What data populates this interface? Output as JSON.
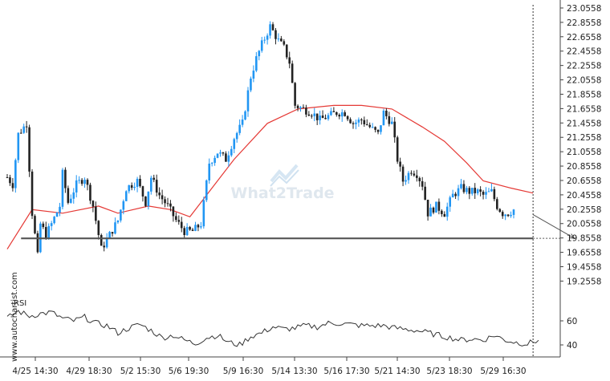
{
  "chart_data": {
    "type": "candlestick",
    "price_axis": {
      "range": [
        19.16,
        23.1
      ],
      "ticks": [
        "23.0558",
        "22.8558",
        "22.6558",
        "22.4558",
        "22.2558",
        "22.0558",
        "21.8558",
        "21.6558",
        "21.4558",
        "21.2558",
        "21.0558",
        "20.8558",
        "20.6558",
        "20.4558",
        "20.2558",
        "20.0558",
        "19.8558",
        "19.6558",
        "19.4558",
        "19.2558"
      ]
    },
    "time_axis": {
      "ticks": [
        "4/25 14:30",
        "4/29 18:30",
        "5/2 15:30",
        "5/6 19:30",
        "5/9 16:30",
        "5/14 13:30",
        "5/16 17:30",
        "5/21 14:30",
        "5/23 18:30",
        "5/29 16:30"
      ]
    },
    "watermark": "What2Trade",
    "credit": "www.autochartist.com",
    "rsi_label": "RSI",
    "rsi_axis": {
      "range": [
        30,
        80
      ],
      "ticks": [
        "60",
        "40"
      ]
    },
    "support_level": 19.85,
    "projection": {
      "from": [
        190,
        20.18
      ],
      "to": [
        205,
        19.85
      ]
    },
    "current_marker_index": 190,
    "ma_anchors": [
      [
        0,
        19.7
      ],
      [
        9,
        20.25
      ],
      [
        20,
        20.2
      ],
      [
        33,
        20.3
      ],
      [
        40,
        20.2
      ],
      [
        51,
        20.3
      ],
      [
        59,
        20.25
      ],
      [
        66,
        20.15
      ],
      [
        73,
        20.5
      ],
      [
        82,
        20.95
      ],
      [
        94,
        21.45
      ],
      [
        105,
        21.65
      ],
      [
        118,
        21.7
      ],
      [
        128,
        21.7
      ],
      [
        139,
        21.65
      ],
      [
        150,
        21.4
      ],
      [
        158,
        21.2
      ],
      [
        166,
        20.9
      ],
      [
        172,
        20.65
      ],
      [
        182,
        20.55
      ],
      [
        190,
        20.48
      ]
    ],
    "price_anchors": [
      [
        0,
        20.7
      ],
      [
        2,
        20.6
      ],
      [
        4,
        21.3
      ],
      [
        7,
        21.45
      ],
      [
        9,
        20.2
      ],
      [
        11,
        19.6
      ],
      [
        12,
        20.05
      ],
      [
        14,
        19.9
      ],
      [
        16,
        20.05
      ],
      [
        19,
        20.3
      ],
      [
        20,
        20.75
      ],
      [
        22,
        20.35
      ],
      [
        25,
        20.6
      ],
      [
        28,
        20.7
      ],
      [
        31,
        20.3
      ],
      [
        34,
        19.7
      ],
      [
        37,
        19.9
      ],
      [
        40,
        20.1
      ],
      [
        43,
        20.55
      ],
      [
        47,
        20.65
      ],
      [
        50,
        20.35
      ],
      [
        52,
        20.7
      ],
      [
        55,
        20.45
      ],
      [
        58,
        20.3
      ],
      [
        61,
        20.1
      ],
      [
        64,
        19.95
      ],
      [
        67,
        19.95
      ],
      [
        70,
        20.05
      ],
      [
        73,
        20.9
      ],
      [
        76,
        21.05
      ],
      [
        79,
        20.95
      ],
      [
        82,
        21.25
      ],
      [
        85,
        21.45
      ],
      [
        88,
        22.1
      ],
      [
        90,
        22.35
      ],
      [
        92,
        22.55
      ],
      [
        95,
        22.8
      ],
      [
        98,
        22.6
      ],
      [
        100,
        22.5
      ],
      [
        102,
        22.3
      ],
      [
        104,
        21.7
      ],
      [
        107,
        21.65
      ],
      [
        110,
        21.6
      ],
      [
        113,
        21.5
      ],
      [
        116,
        21.55
      ],
      [
        119,
        21.6
      ],
      [
        122,
        21.6
      ],
      [
        125,
        21.45
      ],
      [
        128,
        21.5
      ],
      [
        131,
        21.4
      ],
      [
        134,
        21.3
      ],
      [
        136,
        21.6
      ],
      [
        139,
        21.45
      ],
      [
        141,
        20.95
      ],
      [
        143,
        20.65
      ],
      [
        146,
        20.8
      ],
      [
        148,
        20.75
      ],
      [
        150,
        20.6
      ],
      [
        152,
        20.2
      ],
      [
        155,
        20.3
      ],
      [
        158,
        20.2
      ],
      [
        161,
        20.45
      ],
      [
        164,
        20.55
      ],
      [
        167,
        20.5
      ],
      [
        170,
        20.5
      ],
      [
        172,
        20.45
      ],
      [
        175,
        20.5
      ],
      [
        177,
        20.3
      ],
      [
        179,
        20.2
      ],
      [
        181,
        20.2
      ],
      [
        183,
        20.25
      ]
    ],
    "rsi_anchors": [
      [
        0,
        62
      ],
      [
        4,
        68
      ],
      [
        8,
        64
      ],
      [
        12,
        66
      ],
      [
        16,
        67
      ],
      [
        20,
        62
      ],
      [
        24,
        60
      ],
      [
        28,
        63
      ],
      [
        32,
        58
      ],
      [
        36,
        56
      ],
      [
        40,
        50
      ],
      [
        44,
        54
      ],
      [
        48,
        57
      ],
      [
        52,
        52
      ],
      [
        56,
        46
      ],
      [
        60,
        48
      ],
      [
        64,
        44
      ],
      [
        68,
        41
      ],
      [
        72,
        46
      ],
      [
        76,
        48
      ],
      [
        80,
        42
      ],
      [
        84,
        40
      ],
      [
        88,
        47
      ],
      [
        92,
        50
      ],
      [
        96,
        55
      ],
      [
        100,
        53
      ],
      [
        104,
        54
      ],
      [
        108,
        56
      ],
      [
        112,
        55
      ],
      [
        116,
        58
      ],
      [
        120,
        58
      ],
      [
        124,
        57
      ],
      [
        128,
        56
      ],
      [
        132,
        56
      ],
      [
        136,
        56
      ],
      [
        140,
        54
      ],
      [
        144,
        53
      ],
      [
        148,
        52
      ],
      [
        152,
        50
      ],
      [
        156,
        48
      ],
      [
        160,
        46
      ],
      [
        164,
        44
      ],
      [
        168,
        45
      ],
      [
        172,
        44
      ],
      [
        176,
        48
      ],
      [
        180,
        44
      ],
      [
        184,
        42
      ],
      [
        188,
        41
      ],
      [
        192,
        44
      ]
    ]
  }
}
